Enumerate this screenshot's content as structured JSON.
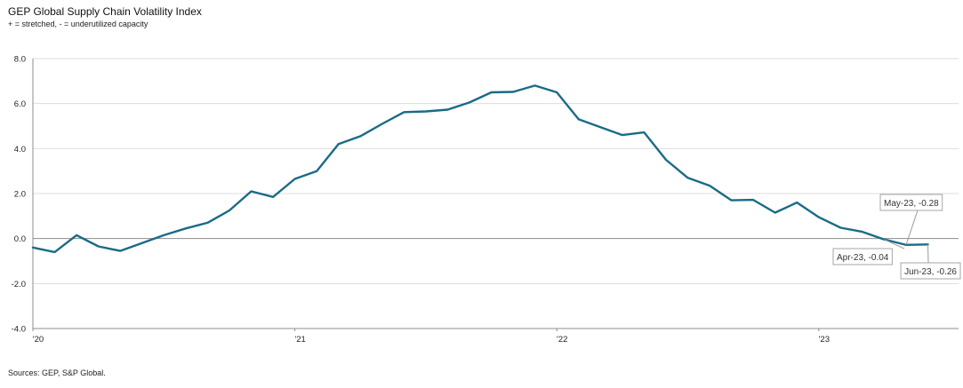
{
  "chart_data": {
    "type": "line",
    "title": "GEP Global Supply Chain Volatility Index",
    "subtitle": "+ = stretched, - = underutilized capacity",
    "source": "Sources: GEP, S&P Global.",
    "xlabel": "",
    "ylabel": "",
    "ylim": [
      -4,
      8
    ],
    "yticks": [
      "-4.0",
      "-2.0",
      "0.0",
      "2.0",
      "4.0",
      "6.0",
      "8.0"
    ],
    "xticks": [
      "'20",
      "'21",
      "'22",
      "'23"
    ],
    "grid": true,
    "line_color": "#1a6b86",
    "series": [
      {
        "x": [
          "2020-01",
          "2020-02",
          "2020-03",
          "2020-04",
          "2020-05",
          "2020-06",
          "2020-07",
          "2020-08",
          "2020-09",
          "2020-10",
          "2020-11",
          "2020-12",
          "2021-01",
          "2021-02",
          "2021-03",
          "2021-04",
          "2021-05",
          "2021-06",
          "2021-07",
          "2021-08",
          "2021-09",
          "2021-10",
          "2021-11",
          "2021-12",
          "2022-01",
          "2022-02",
          "2022-03",
          "2022-04",
          "2022-05",
          "2022-06",
          "2022-07",
          "2022-08",
          "2022-09",
          "2022-10",
          "2022-11",
          "2022-12",
          "2023-01",
          "2023-02",
          "2023-03",
          "2023-04",
          "2023-05",
          "2023-06"
        ],
        "values": [
          -0.4,
          -0.6,
          0.15,
          -0.35,
          -0.55,
          -0.2,
          0.15,
          0.45,
          0.7,
          1.25,
          2.1,
          1.85,
          2.65,
          3.0,
          4.2,
          4.55,
          5.1,
          5.62,
          5.65,
          5.73,
          6.05,
          6.5,
          6.52,
          6.8,
          6.5,
          5.3,
          4.95,
          4.6,
          4.72,
          3.5,
          2.7,
          2.35,
          1.7,
          1.72,
          1.15,
          1.6,
          0.95,
          0.48,
          0.3,
          -0.04,
          -0.28,
          -0.26
        ]
      }
    ],
    "annotations": [
      {
        "text": "May-23, -0.28",
        "x": "2023-05",
        "y": -0.28,
        "placement": "above"
      },
      {
        "text": "Apr-23, -0.04",
        "x": "2023-04",
        "y": -0.04,
        "placement": "below-left"
      },
      {
        "text": "Jun-23, -0.26",
        "x": "2023-06",
        "y": -0.26,
        "placement": "below"
      }
    ]
  }
}
